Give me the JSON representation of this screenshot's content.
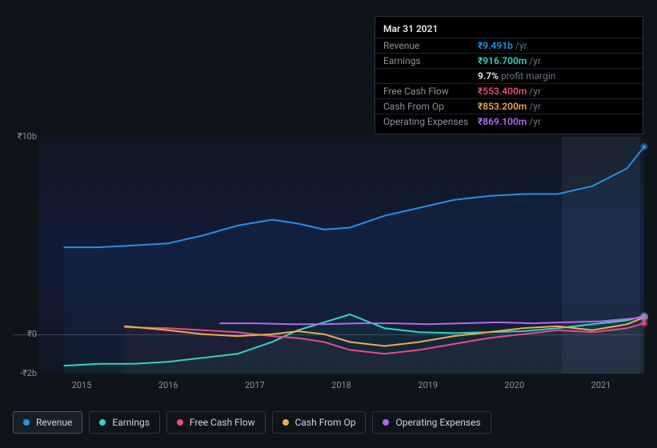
{
  "chart": {
    "type": "line",
    "background_color": "#0f1419",
    "plot_bg_gradient": [
      "rgba(18,28,45,0.4)",
      "rgba(18,28,60,0.85)",
      "rgba(18,28,45,0.4)"
    ],
    "highlight_band": {
      "x_start": 6.05,
      "x_end": 6.95,
      "color": "rgba(170,190,220,0.08)"
    },
    "x_axis": {
      "labels": [
        "2015",
        "2016",
        "2017",
        "2018",
        "2019",
        "2020",
        "2021"
      ],
      "positions": [
        0.5,
        1.5,
        2.5,
        3.5,
        4.5,
        5.5,
        6.5
      ],
      "domain": [
        0,
        7
      ],
      "fontsize": 11,
      "color": "#8a919b"
    },
    "y_axis": {
      "labels": [
        "₹10b",
        "₹0",
        "-₹2b"
      ],
      "values": [
        10,
        0,
        -2
      ],
      "domain": [
        -2,
        10
      ],
      "fontsize": 11,
      "color": "#8a919b",
      "zero_line_color": "#3a4452"
    },
    "series": [
      {
        "name": "Revenue",
        "color": "#2390e8",
        "width": 2,
        "fill": "rgba(35,144,232,0.06)",
        "x": [
          0.3,
          0.7,
          1.1,
          1.5,
          1.9,
          2.3,
          2.7,
          3.0,
          3.3,
          3.6,
          4.0,
          4.4,
          4.8,
          5.2,
          5.6,
          6.0,
          6.4,
          6.8,
          7.0
        ],
        "y": [
          4.4,
          4.4,
          4.5,
          4.6,
          5.0,
          5.5,
          5.8,
          5.6,
          5.3,
          5.4,
          6.0,
          6.4,
          6.8,
          7.0,
          7.1,
          7.1,
          7.5,
          8.4,
          9.5
        ]
      },
      {
        "name": "Earnings",
        "color": "#2bd9c5",
        "width": 2,
        "fill": "rgba(43,217,197,0.05)",
        "x": [
          0.3,
          0.7,
          1.1,
          1.5,
          1.9,
          2.3,
          2.7,
          3.0,
          3.3,
          3.6,
          4.0,
          4.4,
          4.8,
          5.2,
          5.6,
          6.0,
          6.4,
          6.8,
          7.0
        ],
        "y": [
          -1.6,
          -1.5,
          -1.5,
          -1.4,
          -1.2,
          -1.0,
          -0.4,
          0.2,
          0.6,
          1.0,
          0.3,
          0.1,
          0.05,
          0.1,
          0.15,
          0.3,
          0.5,
          0.7,
          0.92
        ]
      },
      {
        "name": "Free Cash Flow",
        "color": "#e84b8a",
        "width": 2,
        "fill": "rgba(232,75,138,0.05)",
        "x": [
          1.0,
          1.5,
          1.9,
          2.3,
          2.7,
          3.0,
          3.3,
          3.6,
          4.0,
          4.4,
          4.8,
          5.2,
          5.6,
          6.0,
          6.4,
          6.8,
          7.0
        ],
        "y": [
          0.35,
          0.3,
          0.2,
          0.1,
          -0.1,
          -0.2,
          -0.4,
          -0.8,
          -1.0,
          -0.8,
          -0.5,
          -0.2,
          0.0,
          0.2,
          0.1,
          0.3,
          0.55
        ]
      },
      {
        "name": "Cash From Op",
        "color": "#f0a94b",
        "width": 2,
        "fill": "none",
        "x": [
          1.0,
          1.5,
          1.9,
          2.3,
          2.7,
          3.0,
          3.3,
          3.6,
          4.0,
          4.4,
          4.8,
          5.2,
          5.6,
          6.0,
          6.4,
          6.8,
          7.0
        ],
        "y": [
          0.4,
          0.2,
          0.0,
          -0.1,
          0.0,
          0.15,
          0.0,
          -0.4,
          -0.6,
          -0.4,
          -0.1,
          0.1,
          0.3,
          0.4,
          0.2,
          0.5,
          0.85
        ]
      },
      {
        "name": "Operating Expenses",
        "color": "#b768f0",
        "width": 2,
        "fill": "none",
        "x": [
          2.1,
          2.5,
          2.9,
          3.3,
          3.7,
          4.1,
          4.5,
          4.9,
          5.3,
          5.7,
          6.1,
          6.5,
          6.9,
          7.0
        ],
        "y": [
          0.55,
          0.55,
          0.5,
          0.5,
          0.55,
          0.55,
          0.5,
          0.55,
          0.6,
          0.55,
          0.6,
          0.65,
          0.8,
          0.87
        ]
      }
    ],
    "end_markers": true
  },
  "tooltip": {
    "title": "Mar 31 2021",
    "rows": [
      {
        "label": "Revenue",
        "value": "₹9.491b",
        "unit": "/yr",
        "color": "#2390e8"
      },
      {
        "label": "Earnings",
        "value": "₹916.700m",
        "unit": "/yr",
        "color": "#2bd9c5"
      },
      {
        "label": "",
        "value": "9.7%",
        "unit": "profit margin",
        "color": "#e6e9ec"
      },
      {
        "label": "Free Cash Flow",
        "value": "₹553.400m",
        "unit": "/yr",
        "color": "#e84b8a"
      },
      {
        "label": "Cash From Op",
        "value": "₹853.200m",
        "unit": "/yr",
        "color": "#f0a94b"
      },
      {
        "label": "Operating Expenses",
        "value": "₹869.100m",
        "unit": "/yr",
        "color": "#b768f0"
      }
    ]
  },
  "legend": {
    "items": [
      {
        "label": "Revenue",
        "color": "#2390e8",
        "active": true
      },
      {
        "label": "Earnings",
        "color": "#2bd9c5",
        "active": false
      },
      {
        "label": "Free Cash Flow",
        "color": "#e84b8a",
        "active": false
      },
      {
        "label": "Cash From Op",
        "color": "#f0a94b",
        "active": false
      },
      {
        "label": "Operating Expenses",
        "color": "#b768f0",
        "active": false
      }
    ]
  }
}
